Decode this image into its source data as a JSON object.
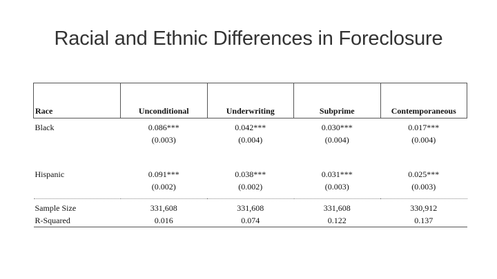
{
  "slide": {
    "title": "Racial and Ethnic Differences in Foreclosure"
  },
  "table": {
    "headers": [
      "Race",
      "Unconditional",
      "Underwriting",
      "Subprime",
      "Contemporaneous"
    ],
    "black": {
      "label": "Black",
      "coef": [
        "0.086***",
        "0.042***",
        "0.030***",
        "0.017***"
      ],
      "se": [
        "(0.003)",
        "(0.004)",
        "(0.004)",
        "(0.004)"
      ]
    },
    "hispanic": {
      "label": "Hispanic",
      "coef": [
        "0.091***",
        "0.038***",
        "0.031***",
        "0.025***"
      ],
      "se": [
        "(0.002)",
        "(0.002)",
        "(0.003)",
        "(0.003)"
      ]
    },
    "sample_size": {
      "label": "Sample Size",
      "values": [
        "331,608",
        "331,608",
        "331,608",
        "330,912"
      ]
    },
    "r_squared": {
      "label": "R-Squared",
      "values": [
        "0.016",
        "0.074",
        "0.122",
        "0.137"
      ]
    }
  }
}
